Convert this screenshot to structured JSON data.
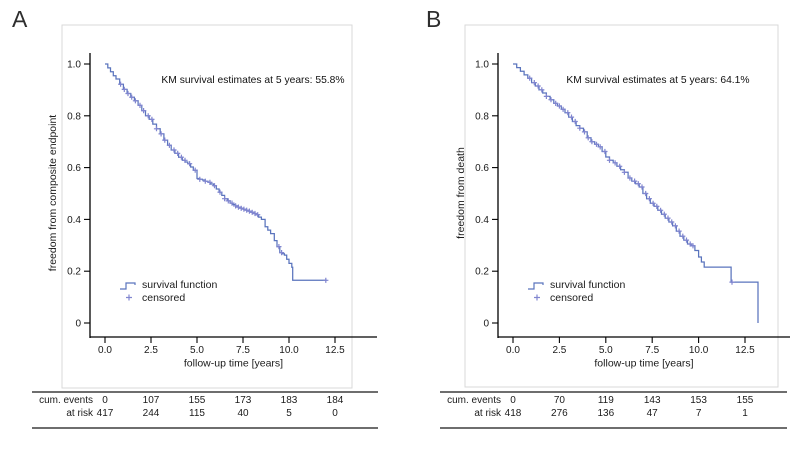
{
  "figure": {
    "background": "#ffffff"
  },
  "colors": {
    "curve": "#5a74bd",
    "censor": "#8186d0",
    "frame": "#d9d9d9",
    "axis": "#000000",
    "table_rule": "#3f3f3f",
    "text": "#1a1a1a",
    "panel_letter": "#2e2e2e"
  },
  "chart_data": [
    {
      "type": "line",
      "subtype": "kaplan-meier-step",
      "panel_label": "A",
      "annotation": "KM survival estimates at 5 years: 55.8%",
      "km_estimate_at_5_years_pct": 55.8,
      "xlabel": "follow-up time [years]",
      "ylabel": "freedom from composite endpoint",
      "xlim": [
        0,
        14.6
      ],
      "ylim": [
        0,
        1.0
      ],
      "grid": false,
      "legend_position": "lower-left-inside",
      "xtick_values": [
        0,
        2.5,
        5,
        7.5,
        10,
        12.5
      ],
      "xtick_labels": [
        "0.0",
        "2.5",
        "5.0",
        "7.5",
        "10.0",
        "12.5"
      ],
      "ytick_values": [
        1.0,
        0.8,
        0.6,
        0.4,
        0.2,
        0
      ],
      "ytick_labels": [
        "1.0",
        "0.8",
        "0.6",
        "0.4",
        "0.2",
        "0"
      ],
      "legend": [
        {
          "label": "survival function",
          "marker": "step-line"
        },
        {
          "label": "censored",
          "marker": "plus"
        }
      ],
      "survival_steps": [
        [
          0,
          1.0
        ],
        [
          0.15,
          0.985
        ],
        [
          0.3,
          0.97
        ],
        [
          0.45,
          0.955
        ],
        [
          0.6,
          0.942
        ],
        [
          0.8,
          0.922
        ],
        [
          1.0,
          0.902
        ],
        [
          1.2,
          0.886
        ],
        [
          1.4,
          0.872
        ],
        [
          1.6,
          0.858
        ],
        [
          1.8,
          0.84
        ],
        [
          2.0,
          0.82
        ],
        [
          2.2,
          0.8
        ],
        [
          2.4,
          0.786
        ],
        [
          2.6,
          0.768
        ],
        [
          2.8,
          0.75
        ],
        [
          3.0,
          0.73
        ],
        [
          3.2,
          0.706
        ],
        [
          3.4,
          0.686
        ],
        [
          3.6,
          0.668
        ],
        [
          3.8,
          0.655
        ],
        [
          4.0,
          0.64
        ],
        [
          4.2,
          0.628
        ],
        [
          4.5,
          0.615
        ],
        [
          4.8,
          0.59
        ],
        [
          5.0,
          0.558
        ],
        [
          5.3,
          0.552
        ],
        [
          5.6,
          0.543
        ],
        [
          5.9,
          0.53
        ],
        [
          6.2,
          0.505
        ],
        [
          6.5,
          0.48
        ],
        [
          6.8,
          0.463
        ],
        [
          7.1,
          0.452
        ],
        [
          7.4,
          0.443
        ],
        [
          7.8,
          0.432
        ],
        [
          8.2,
          0.418
        ],
        [
          8.5,
          0.4
        ],
        [
          8.7,
          0.372
        ],
        [
          9.0,
          0.345
        ],
        [
          9.2,
          0.318
        ],
        [
          9.35,
          0.295
        ],
        [
          9.5,
          0.272
        ],
        [
          9.75,
          0.262
        ],
        [
          10.0,
          0.23
        ],
        [
          10.15,
          0.215
        ],
        [
          10.2,
          0.165
        ],
        [
          12.05,
          0.165
        ]
      ],
      "censor_times": [
        0.85,
        1.05,
        1.25,
        1.45,
        1.65,
        1.9,
        2.1,
        2.35,
        2.55,
        2.8,
        3.05,
        3.25,
        3.5,
        3.75,
        3.95,
        4.15,
        4.35,
        4.6,
        4.9,
        5.15,
        5.45,
        5.7,
        5.95,
        6.25,
        6.5,
        6.7,
        6.9,
        7.1,
        7.25,
        7.4,
        7.55,
        7.7,
        7.85,
        8.0,
        8.15,
        8.3,
        9.45,
        9.6,
        12.0
      ],
      "risk_table": {
        "times": [
          0,
          2.5,
          5,
          7.5,
          10,
          12.5
        ],
        "rows": [
          {
            "label": "cum. events",
            "values": [
              "0",
              "107",
              "155",
              "173",
              "183",
              "184"
            ]
          },
          {
            "label": "at risk",
            "values": [
              "417",
              "244",
              "115",
              "40",
              "5",
              "0"
            ]
          }
        ]
      }
    },
    {
      "type": "line",
      "subtype": "kaplan-meier-step",
      "panel_label": "B",
      "annotation": "KM survival estimates at 5 years: 64.1%",
      "km_estimate_at_5_years_pct": 64.1,
      "xlabel": "follow-up time [years]",
      "ylabel": "freedom from death",
      "xlim": [
        0,
        14.9
      ],
      "ylim": [
        0,
        1.0
      ],
      "grid": false,
      "legend_position": "lower-left-inside",
      "xtick_values": [
        0,
        2.5,
        5,
        7.5,
        10,
        12.5
      ],
      "xtick_labels": [
        "0.0",
        "2.5",
        "5.0",
        "7.5",
        "10.0",
        "12.5"
      ],
      "ytick_values": [
        1.0,
        0.8,
        0.6,
        0.4,
        0.2,
        0
      ],
      "ytick_labels": [
        "1.0",
        "0.8",
        "0.6",
        "0.4",
        "0.2",
        "0"
      ],
      "legend": [
        {
          "label": "survival function",
          "marker": "step-line"
        },
        {
          "label": "censored",
          "marker": "plus"
        }
      ],
      "survival_steps": [
        [
          0,
          1.0
        ],
        [
          0.2,
          0.986
        ],
        [
          0.4,
          0.972
        ],
        [
          0.6,
          0.958
        ],
        [
          0.8,
          0.945
        ],
        [
          1.0,
          0.928
        ],
        [
          1.2,
          0.915
        ],
        [
          1.4,
          0.9
        ],
        [
          1.6,
          0.888
        ],
        [
          1.8,
          0.875
        ],
        [
          2.0,
          0.862
        ],
        [
          2.2,
          0.848
        ],
        [
          2.4,
          0.838
        ],
        [
          2.6,
          0.825
        ],
        [
          2.8,
          0.812
        ],
        [
          3.0,
          0.795
        ],
        [
          3.2,
          0.778
        ],
        [
          3.4,
          0.762
        ],
        [
          3.6,
          0.752
        ],
        [
          3.8,
          0.738
        ],
        [
          4.0,
          0.715
        ],
        [
          4.2,
          0.7
        ],
        [
          4.4,
          0.69
        ],
        [
          4.6,
          0.68
        ],
        [
          4.8,
          0.662
        ],
        [
          5.0,
          0.641
        ],
        [
          5.2,
          0.628
        ],
        [
          5.4,
          0.618
        ],
        [
          5.6,
          0.605
        ],
        [
          5.8,
          0.592
        ],
        [
          6.0,
          0.582
        ],
        [
          6.2,
          0.56
        ],
        [
          6.4,
          0.548
        ],
        [
          6.6,
          0.538
        ],
        [
          6.8,
          0.525
        ],
        [
          7.0,
          0.5
        ],
        [
          7.2,
          0.48
        ],
        [
          7.4,
          0.462
        ],
        [
          7.6,
          0.45
        ],
        [
          7.8,
          0.435
        ],
        [
          8.0,
          0.42
        ],
        [
          8.2,
          0.405
        ],
        [
          8.4,
          0.39
        ],
        [
          8.6,
          0.375
        ],
        [
          8.8,
          0.355
        ],
        [
          9.0,
          0.335
        ],
        [
          9.2,
          0.32
        ],
        [
          9.4,
          0.305
        ],
        [
          9.6,
          0.298
        ],
        [
          9.8,
          0.28
        ],
        [
          10.0,
          0.255
        ],
        [
          10.3,
          0.216
        ],
        [
          11.7,
          0.216
        ],
        [
          11.75,
          0.158
        ],
        [
          13.15,
          0.158
        ],
        [
          13.2,
          0.0
        ]
      ],
      "censor_times": [
        0.9,
        1.15,
        1.35,
        1.55,
        1.8,
        2.05,
        2.3,
        2.5,
        2.7,
        2.95,
        3.15,
        3.35,
        3.6,
        3.85,
        4.05,
        4.25,
        4.5,
        4.7,
        4.95,
        5.2,
        5.5,
        5.75,
        6.0,
        6.3,
        6.55,
        6.75,
        6.95,
        7.15,
        7.35,
        7.55,
        7.75,
        7.95,
        8.15,
        8.35,
        8.55,
        8.75,
        8.95,
        9.15,
        9.35,
        9.55,
        9.7,
        11.8
      ],
      "risk_table": {
        "times": [
          0,
          2.5,
          5,
          7.5,
          10,
          12.5
        ],
        "rows": [
          {
            "label": "cum. events",
            "values": [
              "0",
              "70",
              "119",
              "143",
              "153",
              "155"
            ]
          },
          {
            "label": "at risk",
            "values": [
              "418",
              "276",
              "136",
              "47",
              "7",
              "1"
            ]
          }
        ]
      }
    }
  ]
}
